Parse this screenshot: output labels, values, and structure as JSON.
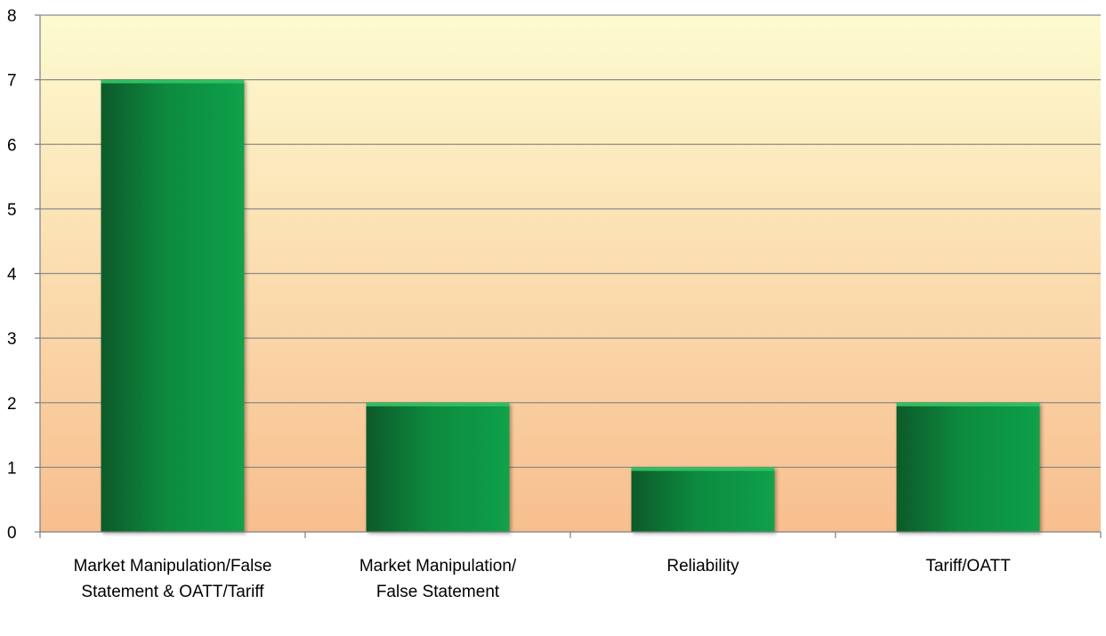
{
  "chart_data": {
    "type": "bar",
    "categories": [
      [
        "Market Manipulation/False",
        "Statement & OATT/Tariff"
      ],
      [
        "Market Manipulation/",
        "False Statement"
      ],
      [
        "Reliability"
      ],
      [
        "Tariff/OATT"
      ]
    ],
    "values": [
      7,
      2,
      1,
      2
    ],
    "title": "",
    "xlabel": "",
    "ylabel": "",
    "ylim": [
      0,
      8
    ],
    "yticks": [
      0,
      1,
      2,
      3,
      4,
      5,
      6,
      7,
      8
    ],
    "grid": true,
    "legend": "none",
    "colors": {
      "bar_dark": "#0a5a2a",
      "bar_mid": "#0b8a3e",
      "bar_light": "#12a04a",
      "bar_top": "#2fbf63",
      "bg_top": "#fdfbd0",
      "bg_bottom": "#f8be8e",
      "grid": "#8c8c8c",
      "axis": "#7f7f7f"
    }
  }
}
